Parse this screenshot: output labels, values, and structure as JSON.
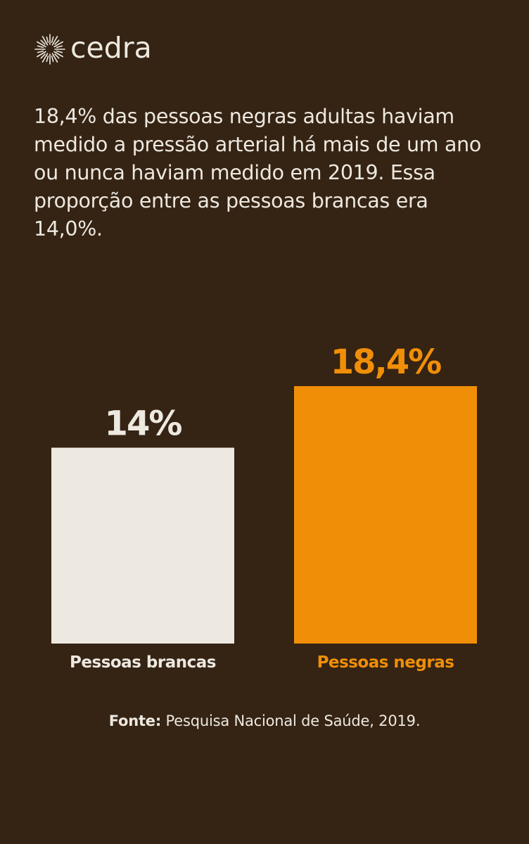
{
  "brand": {
    "name": "cedra",
    "icon": "sun-burst-logo-icon"
  },
  "headline": "18,4% das pessoas negras adultas haviam medido a pressão arterial há mais de um ano ou nunca haviam medido em 2019. Essa proporção entre as pessoas brancas era 14,0%.",
  "source": {
    "label": "Fonte:",
    "text": " Pesquisa Nacional de Saúde, 2019."
  },
  "colors": {
    "background": "#352314",
    "light": "#ede9e0",
    "accent": "#f08f07"
  },
  "chart_data": {
    "type": "bar",
    "title": "",
    "xlabel": "",
    "ylabel": "",
    "categories": [
      "Pessoas brancas",
      "Pessoas negras"
    ],
    "values": [
      14.0,
      18.4
    ],
    "data_labels": [
      "14%",
      "18,4%"
    ],
    "bar_colors": [
      "#ede9e0",
      "#f08f07"
    ],
    "ylim": [
      0,
      18.4
    ],
    "grid": false,
    "legend": "none"
  }
}
